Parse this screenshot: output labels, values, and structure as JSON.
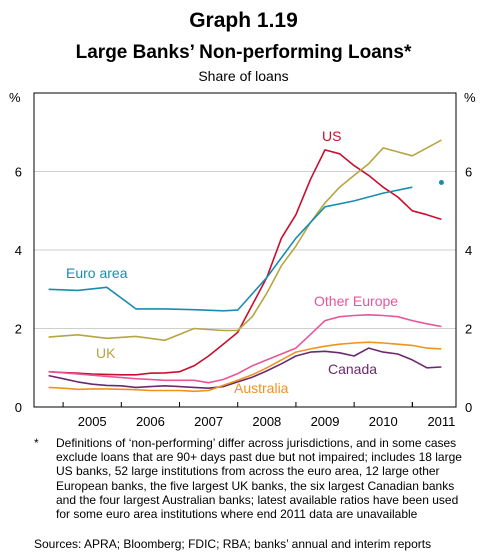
{
  "header": {
    "graph_number": "Graph 1.19",
    "title": "Large Banks’ Non-performing Loans*",
    "subtitle": "Share of loans"
  },
  "footnote": {
    "marker": "*",
    "text": "Definitions of ‘non-performing’ differ across jurisdictions, and in some cases exclude loans that are 90+ days past due but not impaired; includes 18 large US banks, 52 large institutions from across the euro area, 12 large other European banks, the five largest UK banks, the six largest Canadian banks and the four largest Australian banks; latest available ratios have been used for some euro area institutions where end 2011 data are unavailable"
  },
  "sources": "Sources: APRA; Bloomberg; FDIC; RBA; banks’ annual and interim reports",
  "chart_data": {
    "type": "line",
    "ylabel_left": "%",
    "ylabel_right": "%",
    "ylim": [
      0,
      8
    ],
    "yticks": [
      "0",
      "2",
      "4",
      "6"
    ],
    "ytick_values": [
      0,
      2,
      4,
      6
    ],
    "xlim": [
      2004.5,
      2011.75
    ],
    "xticks": [
      "2005",
      "2006",
      "2007",
      "2008",
      "2009",
      "2010",
      "2011"
    ],
    "grid": true,
    "series": [
      {
        "name": "US",
        "color": "#c8102e",
        "x": [
          2004.75,
          2005.0,
          2005.25,
          2005.5,
          2005.75,
          2006.0,
          2006.25,
          2006.5,
          2006.75,
          2007.0,
          2007.25,
          2007.5,
          2007.75,
          2008.0,
          2008.25,
          2008.5,
          2008.75,
          2009.0,
          2009.25,
          2009.5,
          2009.75,
          2010.0,
          2010.25,
          2010.5,
          2010.75,
          2011.0,
          2011.25,
          2011.5
        ],
        "values": [
          0.9,
          0.88,
          0.86,
          0.84,
          0.83,
          0.82,
          0.82,
          0.86,
          0.87,
          0.9,
          1.05,
          1.3,
          1.6,
          1.9,
          2.6,
          3.3,
          4.3,
          4.9,
          5.8,
          6.55,
          6.45,
          6.15,
          5.9,
          5.6,
          5.35,
          5.0,
          4.9,
          4.78
        ]
      },
      {
        "name": "",
        "color": "#b5a642",
        "x": [
          2008.0,
          2008.25,
          2008.5,
          2008.75,
          2009.0,
          2009.25,
          2009.5,
          2009.75,
          2010.0,
          2010.25,
          2010.5,
          2010.75,
          2011.0,
          2011.25,
          2011.5
        ],
        "values": [
          1.95,
          2.3,
          2.9,
          3.6,
          4.1,
          4.7,
          5.2,
          5.6,
          5.9,
          6.2,
          6.6,
          6.5,
          6.4,
          6.6,
          6.8
        ]
      },
      {
        "name": "Euro area",
        "color": "#1a8cb0",
        "x": [
          2004.75,
          2005.25,
          2005.75,
          2006.25,
          2006.75,
          2007.25,
          2007.75,
          2008.0,
          2008.5,
          2009.0,
          2009.5,
          2010.0,
          2010.5,
          2011.0
        ],
        "values": [
          3.0,
          2.97,
          3.05,
          2.5,
          2.5,
          2.48,
          2.45,
          2.47,
          3.3,
          4.3,
          5.1,
          5.25,
          5.45,
          5.6
        ]
      },
      {
        "name": "",
        "color": "#1a8cb0",
        "x": [
          2011.5
        ],
        "values": [
          5.72
        ],
        "marker": "dot"
      },
      {
        "name": "UK",
        "color": "#b5a642",
        "x": [
          2004.75,
          2005.25,
          2005.75,
          2006.25,
          2006.75,
          2007.25,
          2007.75,
          2008.0
        ],
        "values": [
          1.78,
          1.84,
          1.75,
          1.8,
          1.7,
          2.0,
          1.95,
          1.95
        ]
      },
      {
        "name": "Other Europe",
        "color": "#e8559a",
        "x": [
          2004.75,
          2005.25,
          2005.75,
          2006.25,
          2006.75,
          2007.25,
          2007.5,
          2007.75,
          2008.0,
          2008.25,
          2008.5,
          2008.75,
          2009.0,
          2009.25,
          2009.5,
          2009.75,
          2010.0,
          2010.25,
          2010.5,
          2010.75,
          2011.0,
          2011.25,
          2011.5
        ],
        "values": [
          0.9,
          0.84,
          0.78,
          0.72,
          0.68,
          0.68,
          0.62,
          0.7,
          0.85,
          1.05,
          1.2,
          1.35,
          1.5,
          1.85,
          2.2,
          2.3,
          2.33,
          2.35,
          2.33,
          2.3,
          2.2,
          2.12,
          2.05
        ]
      },
      {
        "name": "Canada",
        "color": "#6a2a6e",
        "x": [
          2004.75,
          2005.0,
          2005.25,
          2005.5,
          2005.75,
          2006.0,
          2006.25,
          2006.5,
          2006.75,
          2007.0,
          2007.25,
          2007.5,
          2007.75,
          2008.0,
          2008.25,
          2008.5,
          2008.75,
          2009.0,
          2009.25,
          2009.5,
          2009.75,
          2010.0,
          2010.25,
          2010.5,
          2010.75,
          2011.0,
          2011.25,
          2011.5
        ],
        "values": [
          0.8,
          0.72,
          0.64,
          0.58,
          0.55,
          0.54,
          0.5,
          0.52,
          0.54,
          0.52,
          0.5,
          0.48,
          0.52,
          0.64,
          0.76,
          0.92,
          1.1,
          1.3,
          1.4,
          1.42,
          1.38,
          1.3,
          1.5,
          1.4,
          1.35,
          1.2,
          1.0,
          1.02
        ]
      },
      {
        "name": "Australia",
        "color": "#f0921e",
        "x": [
          2004.75,
          2005.0,
          2005.25,
          2005.5,
          2005.75,
          2006.0,
          2006.25,
          2006.5,
          2006.75,
          2007.0,
          2007.25,
          2007.5,
          2007.75,
          2008.0,
          2008.25,
          2008.5,
          2008.75,
          2009.0,
          2009.25,
          2009.5,
          2009.75,
          2010.0,
          2010.25,
          2010.5,
          2010.75,
          2011.0,
          2011.25,
          2011.5
        ],
        "values": [
          0.5,
          0.48,
          0.45,
          0.46,
          0.46,
          0.45,
          0.44,
          0.42,
          0.42,
          0.42,
          0.4,
          0.42,
          0.55,
          0.68,
          0.82,
          1.0,
          1.2,
          1.4,
          1.48,
          1.55,
          1.6,
          1.63,
          1.65,
          1.63,
          1.6,
          1.57,
          1.5,
          1.48
        ]
      }
    ]
  }
}
